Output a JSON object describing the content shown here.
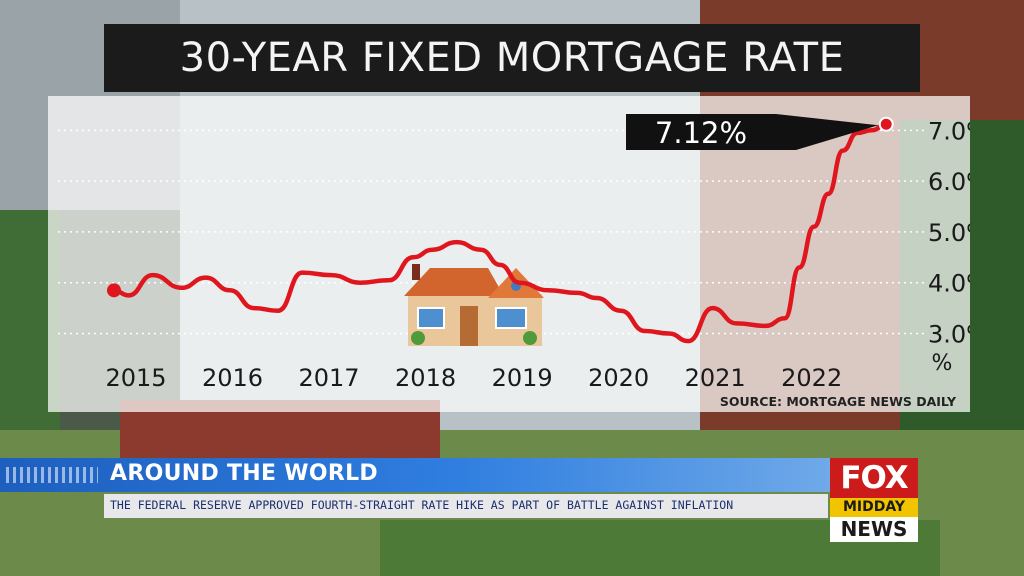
{
  "broadcast": {
    "title": "30-YEAR FIXED MORTGAGE RATE",
    "source": "SOURCE: MORTGAGE NEWS DAILY",
    "callout": "7.12%",
    "headline": "AROUND THE WORLD",
    "ticker": "THE FEDERAL RESERVE APPROVED FOURTH-STRAIGHT RATE HIKE AS PART OF BATTLE AGAINST INFLATION",
    "logo": {
      "line1": "FOX",
      "line2": "MIDDAY",
      "line3": "NEWS"
    }
  },
  "colors": {
    "line": "#e0161e",
    "title_bg": "#1b1b1b",
    "headline_bar": "#2f7ee0",
    "logo_red": "#cc1b1b",
    "logo_yellow": "#f2c400"
  },
  "chart_data": {
    "type": "line",
    "title": "30-YEAR FIXED MORTGAGE RATE",
    "ylabel": "%",
    "xlabel": "",
    "categories": [
      "2015",
      "2016",
      "2017",
      "2018",
      "2019",
      "2020",
      "2021",
      "2022"
    ],
    "ytick_labels": [
      "3.0%",
      "4.0%",
      "5.0%",
      "6.0%",
      "7.0%"
    ],
    "yticks": [
      3,
      4,
      5,
      6,
      7
    ],
    "ylim": [
      2.4,
      7.4
    ],
    "xlim": [
      2015,
      2023.35
    ],
    "grid": true,
    "series": [
      {
        "x": [
          2015.0,
          2015.15,
          2015.4,
          2015.7,
          2015.95,
          2016.2,
          2016.45,
          2016.7,
          2016.95,
          2017.25,
          2017.55,
          2017.85,
          2018.1,
          2018.3,
          2018.55,
          2018.8,
          2019.0,
          2019.2,
          2019.5,
          2019.8,
          2020.0,
          2020.25,
          2020.5,
          2020.75,
          2020.95,
          2021.2,
          2021.45,
          2021.75,
          2021.95,
          2022.1,
          2022.25,
          2022.4,
          2022.55,
          2022.7,
          2022.85,
          2023.0
        ],
        "y": [
          3.85,
          3.75,
          4.15,
          3.9,
          4.1,
          3.85,
          3.5,
          3.45,
          4.2,
          4.15,
          4.0,
          4.05,
          4.5,
          4.65,
          4.8,
          4.65,
          4.35,
          4.0,
          3.85,
          3.8,
          3.7,
          3.45,
          3.05,
          3.0,
          2.85,
          3.5,
          3.2,
          3.15,
          3.3,
          4.3,
          5.1,
          5.75,
          6.6,
          6.95,
          7.0,
          7.12
        ],
        "marker_points": [
          {
            "x": 2015.0,
            "y": 3.85
          },
          {
            "x": 2023.0,
            "y": 7.12
          }
        ]
      }
    ],
    "annotations": [
      {
        "text": "7.12%",
        "x": 2023.0,
        "y": 7.12
      }
    ],
    "source": "SOURCE: MORTGAGE NEWS DAILY"
  }
}
